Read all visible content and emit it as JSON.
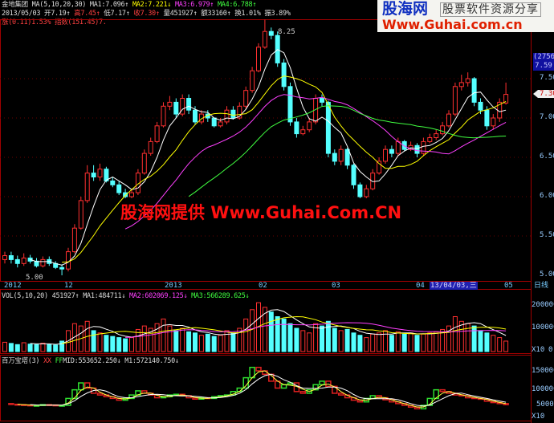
{
  "header": {
    "stock": "金地集团",
    "ma_spec": "MA(5,10,20,30)",
    "ma1": "MA1:7.096↑",
    "ma2": "MA2:7.221↓",
    "ma3": "MA3:6.979↑",
    "ma4": "MA4:6.788↑",
    "date": "2013/05/03",
    "open": "开7.19↑",
    "high": "高7.45↑",
    "low": "低7.17↑",
    "close": "收7.30↑",
    "vol": "量451927↑",
    "amount": "额33160↑",
    "turnover": "换1.01%",
    "amplitude": "振3.89%",
    "change": "涨(0.11)1.53%",
    "index": "指数(151.45)7."
  },
  "vol_header": {
    "spec": "VOL(5,10,20) 451927↑",
    "ma1": "MA1:484711↓",
    "ma2": "MA2:602069.125↓",
    "ma3": "MA3:566289.625↓"
  },
  "tower_header": {
    "spec": "百万宝塔(3)",
    "xx": "XX",
    "ff": "FF",
    "mid": "MID:553652.250↓",
    "m1": "M1:572140.750↓"
  },
  "price_axis": [
    "7.50",
    "7.00",
    "6.50",
    "6.00",
    "5.50",
    "5.00"
  ],
  "price_box": {
    "code": "(2756)",
    "price": "7.59"
  },
  "last_price_tag": "7.30",
  "vol_axis": [
    "200000",
    "100000",
    "X10",
    "0"
  ],
  "tower_axis": [
    "150000",
    "100000",
    "50000",
    "X10"
  ],
  "dates": [
    "2012",
    "12",
    "2013",
    "02",
    "03",
    "04",
    "05"
  ],
  "cursor_date": "13/04/03,三",
  "period": "日线",
  "annotations": {
    "high": "8.25",
    "low": "5.00"
  },
  "logo": {
    "name": "股海网",
    "slogan": "股票软件资源分享",
    "url": "Www.Guhai.com.cn"
  },
  "watermark": "股海网提供 Www.Guhai.Com.CN",
  "colors": {
    "up": "#ff3030",
    "down": "#54ffff",
    "ma1": "#ffffff",
    "ma2": "#ffff00",
    "ma3": "#ff40ff",
    "ma4": "#40ff40"
  },
  "chart_data": {
    "type": "candlestick",
    "ylim": [
      5.0,
      8.3
    ],
    "open": [
      5.2,
      5.25,
      5.2,
      5.15,
      5.22,
      5.18,
      5.12,
      5.2,
      5.15,
      5.1,
      5.08,
      5.3,
      5.6,
      5.95,
      6.3,
      6.25,
      6.35,
      6.2,
      6.15,
      6.05,
      6.0,
      6.05,
      6.3,
      6.55,
      6.7,
      6.9,
      7.15,
      7.2,
      7.05,
      7.25,
      7.1,
      6.95,
      7.05,
      7.0,
      6.9,
      6.95,
      7.1,
      7.0,
      7.15,
      7.35,
      7.6,
      7.9,
      8.1,
      8.05,
      7.7,
      7.4,
      6.95,
      6.8,
      6.85,
      6.95,
      7.25,
      7.2,
      6.55,
      6.45,
      6.6,
      6.4,
      6.15,
      6.0,
      6.1,
      6.3,
      6.45,
      6.6,
      6.55,
      6.7,
      6.6,
      6.65,
      6.55,
      6.7,
      6.75,
      6.8,
      6.9,
      7.05,
      7.4,
      7.45,
      7.5,
      7.2,
      7.1,
      6.9,
      7.0,
      7.19
    ],
    "high": [
      5.3,
      5.3,
      5.25,
      5.28,
      5.26,
      5.22,
      5.24,
      5.24,
      5.18,
      5.14,
      5.35,
      5.65,
      6.0,
      6.4,
      6.4,
      6.42,
      6.38,
      6.25,
      6.2,
      6.1,
      6.1,
      6.35,
      6.6,
      6.75,
      6.95,
      7.2,
      7.28,
      7.25,
      7.3,
      7.3,
      7.15,
      7.1,
      7.1,
      7.0,
      7.0,
      7.15,
      7.15,
      7.2,
      7.4,
      7.65,
      7.95,
      8.25,
      8.15,
      8.1,
      7.75,
      7.45,
      7.0,
      6.9,
      7.0,
      7.3,
      7.3,
      7.22,
      6.6,
      6.65,
      6.62,
      6.42,
      6.18,
      6.15,
      6.35,
      6.5,
      6.65,
      6.65,
      6.75,
      6.72,
      6.7,
      6.68,
      6.75,
      6.8,
      6.85,
      6.95,
      7.1,
      7.45,
      7.55,
      7.58,
      7.52,
      7.25,
      7.15,
      7.05,
      7.25,
      7.45
    ],
    "low": [
      5.15,
      5.15,
      5.1,
      5.12,
      5.15,
      5.1,
      5.1,
      5.12,
      5.08,
      5.0,
      5.05,
      5.28,
      5.58,
      5.92,
      6.2,
      6.2,
      6.18,
      6.12,
      6.02,
      5.98,
      5.98,
      6.02,
      6.28,
      6.52,
      6.68,
      6.88,
      7.1,
      7.0,
      7.02,
      7.05,
      6.92,
      6.92,
      6.95,
      6.88,
      6.88,
      6.92,
      6.98,
      6.98,
      7.12,
      7.32,
      7.58,
      7.88,
      8.0,
      7.65,
      7.35,
      6.9,
      6.75,
      6.78,
      6.82,
      6.92,
      7.15,
      6.5,
      6.4,
      6.4,
      6.35,
      6.1,
      5.98,
      5.98,
      6.08,
      6.28,
      6.42,
      6.5,
      6.52,
      6.58,
      6.58,
      6.5,
      6.52,
      6.68,
      6.72,
      6.78,
      6.88,
      7.02,
      7.35,
      7.4,
      7.15,
      7.05,
      6.85,
      6.85,
      6.95,
      7.17
    ],
    "close": [
      5.25,
      5.2,
      5.15,
      5.22,
      5.18,
      5.12,
      5.2,
      5.15,
      5.1,
      5.08,
      5.3,
      5.6,
      5.95,
      6.3,
      6.25,
      6.35,
      6.2,
      6.15,
      6.05,
      6.0,
      6.05,
      6.3,
      6.55,
      6.7,
      6.9,
      7.15,
      7.2,
      7.05,
      7.25,
      7.1,
      6.95,
      7.05,
      7.0,
      6.9,
      6.95,
      7.1,
      7.0,
      7.15,
      7.35,
      7.6,
      7.9,
      8.1,
      8.05,
      7.7,
      7.4,
      6.95,
      6.8,
      6.85,
      6.95,
      7.25,
      7.2,
      6.55,
      6.45,
      6.6,
      6.4,
      6.15,
      6.0,
      6.1,
      6.3,
      6.45,
      6.6,
      6.55,
      6.7,
      6.6,
      6.65,
      6.55,
      6.7,
      6.75,
      6.8,
      6.9,
      7.05,
      7.4,
      7.45,
      7.5,
      7.2,
      7.1,
      6.9,
      7.0,
      7.2,
      7.3
    ],
    "volume": [
      40000,
      35000,
      30000,
      38000,
      32000,
      30000,
      36000,
      30000,
      28000,
      45000,
      90000,
      120000,
      110000,
      130000,
      90000,
      80000,
      70000,
      65000,
      60000,
      55000,
      60000,
      95000,
      110000,
      100000,
      120000,
      140000,
      110000,
      90000,
      100000,
      85000,
      80000,
      70000,
      75000,
      65000,
      70000,
      90000,
      80000,
      100000,
      140000,
      180000,
      210000,
      190000,
      170000,
      150000,
      140000,
      120000,
      100000,
      90000,
      80000,
      120000,
      110000,
      130000,
      100000,
      90000,
      95000,
      80000,
      70000,
      60000,
      75000,
      80000,
      90000,
      70000,
      85000,
      75000,
      80000,
      70000,
      75000,
      80000,
      85000,
      95000,
      110000,
      150000,
      130000,
      120000,
      110000,
      90000,
      80000,
      70000,
      60000,
      45000
    ],
    "tower": [
      55000,
      53000,
      52000,
      51000,
      50000,
      50000,
      52000,
      51000,
      50000,
      50000,
      70000,
      95000,
      115000,
      100000,
      85000,
      80000,
      75000,
      70000,
      65000,
      70000,
      80000,
      92000,
      85000,
      80000,
      72000,
      75000,
      80000,
      82000,
      78000,
      72000,
      68000,
      72000,
      70000,
      75000,
      78000,
      80000,
      90000,
      100000,
      130000,
      160000,
      150000,
      140000,
      120000,
      100000,
      110000,
      115000,
      90000,
      85000,
      95000,
      110000,
      120000,
      105000,
      85000,
      80000,
      72000,
      65000,
      60000,
      70000,
      78000,
      72000,
      66000,
      60000,
      55000,
      50000,
      45000,
      40000,
      50000,
      70000,
      95000,
      90000,
      85000,
      80000,
      78000,
      72000,
      70000,
      68000,
      62000,
      58000,
      55000,
      52000
    ],
    "ma_periods": [
      5,
      10,
      20,
      30
    ]
  }
}
